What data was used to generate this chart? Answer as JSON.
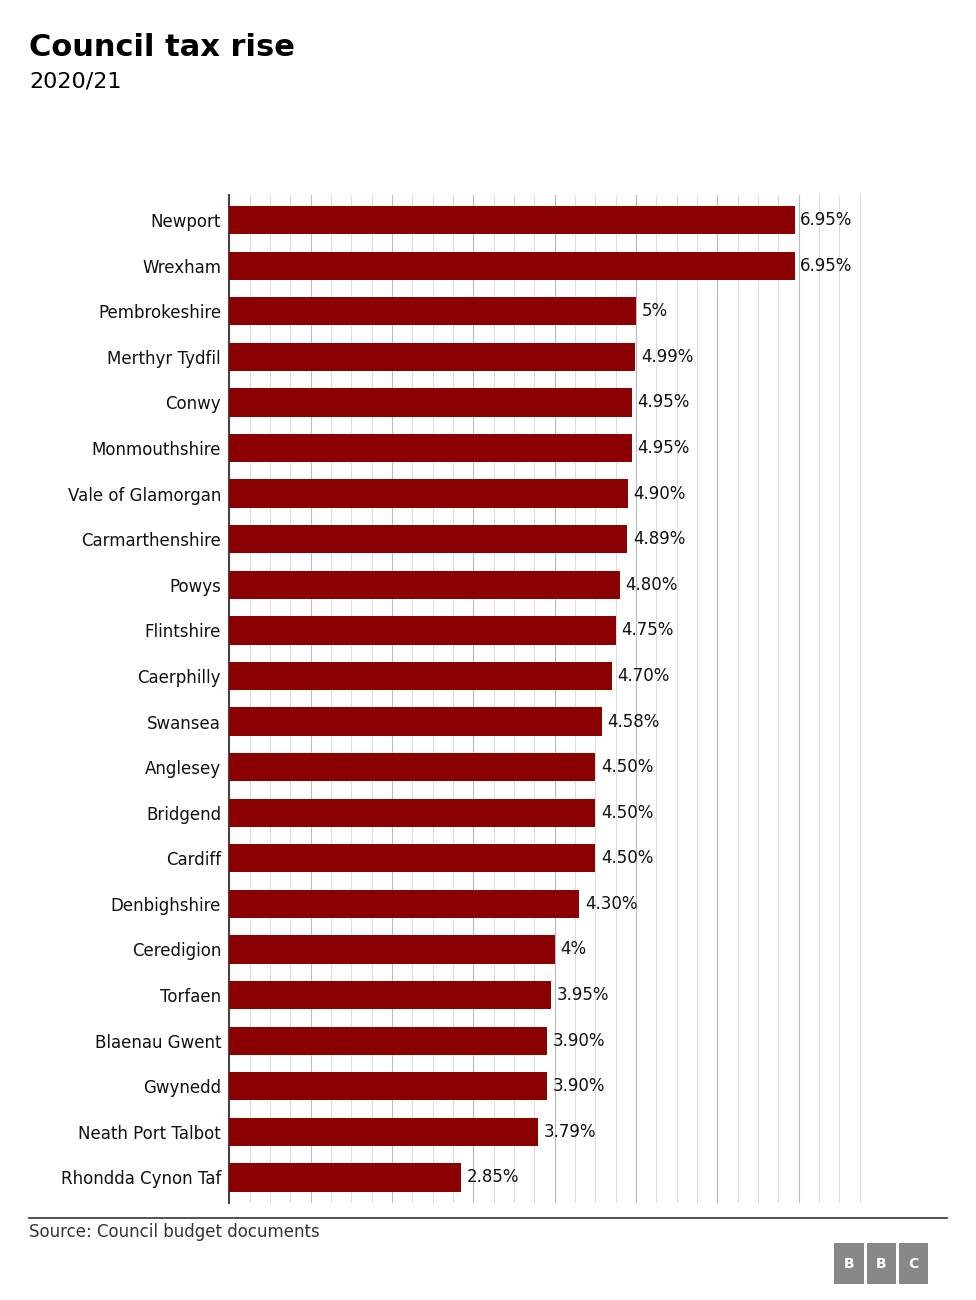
{
  "title": "Council tax rise",
  "subtitle": "2020/21",
  "categories": [
    "Newport",
    "Wrexham",
    "Pembrokeshire",
    "Merthyr Tydfil",
    "Conwy",
    "Monmouthshire",
    "Vale of Glamorgan",
    "Carmarthenshire",
    "Powys",
    "Flintshire",
    "Caerphilly",
    "Swansea",
    "Anglesey",
    "Bridgend",
    "Cardiff",
    "Denbighshire",
    "Ceredigion",
    "Torfaen",
    "Blaenau Gwent",
    "Gwynedd",
    "Neath Port Talbot",
    "Rhondda Cynon Taf"
  ],
  "values": [
    6.95,
    6.95,
    5.0,
    4.99,
    4.95,
    4.95,
    4.9,
    4.89,
    4.8,
    4.75,
    4.7,
    4.58,
    4.5,
    4.5,
    4.5,
    4.3,
    4.0,
    3.95,
    3.9,
    3.9,
    3.79,
    2.85
  ],
  "labels": [
    "6.95%",
    "6.95%",
    "5%",
    "4.99%",
    "4.95%",
    "4.95%",
    "4.90%",
    "4.89%",
    "4.80%",
    "4.75%",
    "4.70%",
    "4.58%",
    "4.50%",
    "4.50%",
    "4.50%",
    "4.30%",
    "4%",
    "3.95%",
    "3.90%",
    "3.90%",
    "3.79%",
    "2.85%"
  ],
  "bar_color": "#8B0000",
  "background_color": "#ffffff",
  "source_text": "Source: Council budget documents",
  "xlim": [
    0,
    7.8
  ],
  "title_fontsize": 22,
  "subtitle_fontsize": 16,
  "label_fontsize": 12,
  "tick_fontsize": 12,
  "source_fontsize": 12,
  "bar_height": 0.62
}
